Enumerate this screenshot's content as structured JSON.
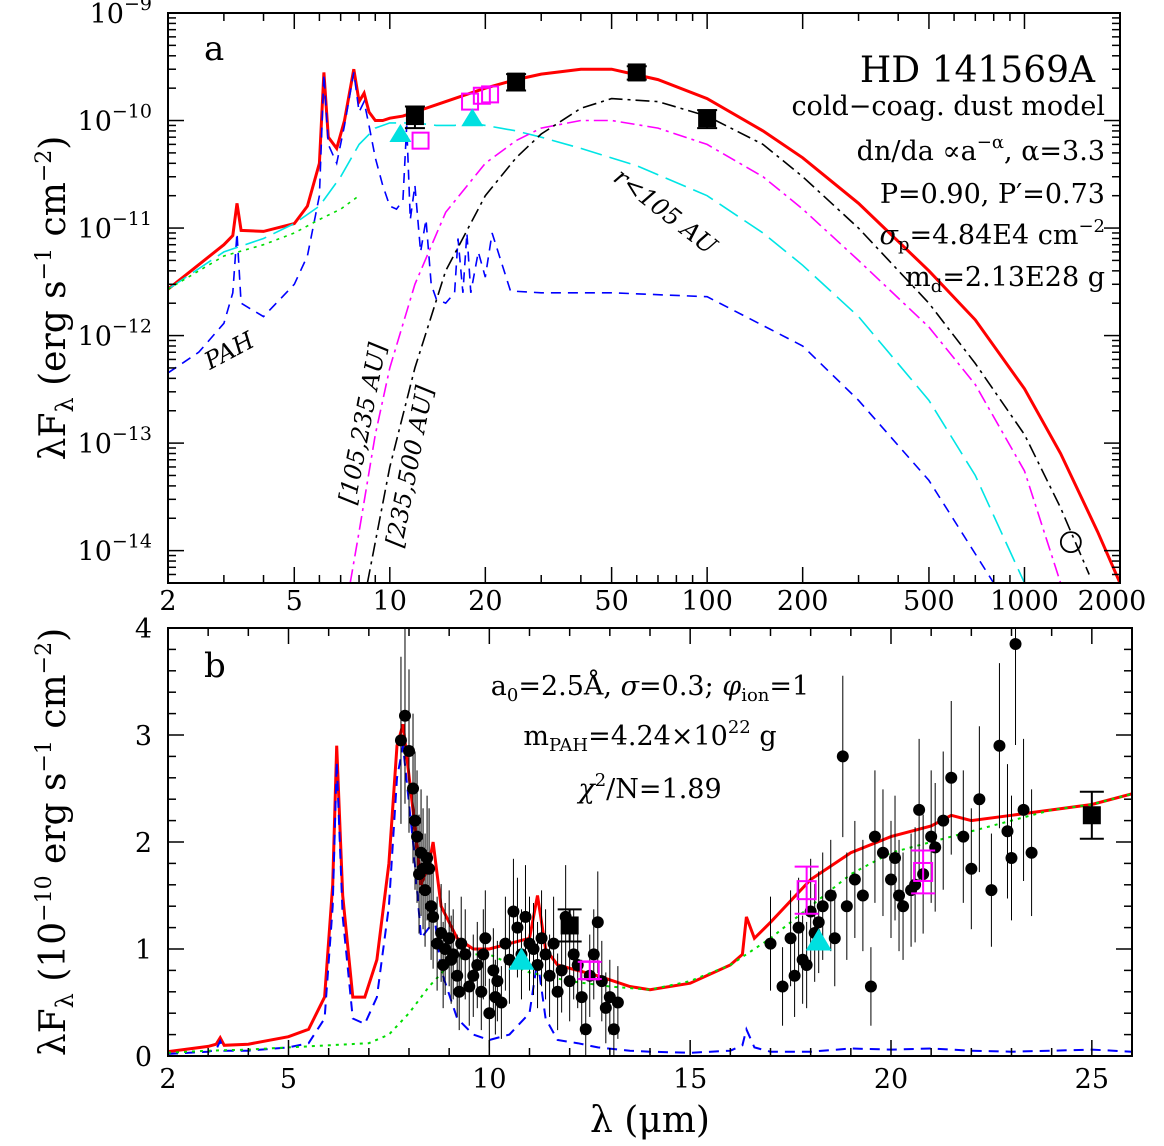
{
  "chart_data": [
    {
      "panel": "a",
      "type": "line",
      "title": "HD 141569A",
      "xlabel": "",
      "ylabel_html": "λF<sub>λ</sub> (erg s<sup>-1</sup> cm<sup>-2</sup>)",
      "ylabel": "λFλ (erg s^-1 cm^-2)",
      "xscale": "log",
      "yscale": "log",
      "xlim": [
        2,
        2000
      ],
      "ylim": [
        5e-15,
        1e-09
      ],
      "x_ticks": [
        {
          "v": 2,
          "t": "2"
        },
        {
          "v": 5,
          "t": "5"
        },
        {
          "v": 10,
          "t": "10"
        },
        {
          "v": 20,
          "t": "20"
        },
        {
          "v": 50,
          "t": "50"
        },
        {
          "v": 100,
          "t": "100"
        },
        {
          "v": 200,
          "t": "200"
        },
        {
          "v": 500,
          "t": "500"
        },
        {
          "v": 1000,
          "t": "1000"
        },
        {
          "v": 2000,
          "t": "2000"
        }
      ],
      "y_ticks": [
        {
          "v": 1e-09,
          "b": "10",
          "e": "−9"
        },
        {
          "v": 1e-10,
          "b": "10",
          "e": "−10"
        },
        {
          "v": 1e-11,
          "b": "10",
          "e": "−11"
        },
        {
          "v": 1e-12,
          "b": "10",
          "e": "−12"
        },
        {
          "v": 1e-13,
          "b": "10",
          "e": "−13"
        },
        {
          "v": 1e-14,
          "b": "10",
          "e": "−14"
        }
      ],
      "annotations": [
        "cold−coag. dust model",
        "dn/da ∝a^−α, α=3.3",
        "P=0.90, P′=0.73",
        "σp=4.84E4 cm^−2",
        "md=2.13E28 g"
      ],
      "region_labels": [
        "PAH",
        "r<105 AU",
        "[105,235 AU]",
        "[235,500 AU]"
      ],
      "series": [
        {
          "role": "total model",
          "color": "#ff0000",
          "style": "solid",
          "x": [
            2,
            3,
            3.2,
            3.3,
            3.4,
            4,
            5,
            5.5,
            6,
            6.2,
            6.4,
            6.8,
            7.2,
            7.7,
            8.0,
            8.3,
            8.6,
            9.0,
            9.5,
            10,
            11,
            12,
            14,
            17,
            20,
            25,
            30,
            40,
            50,
            70,
            100,
            150,
            200,
            300,
            500,
            700,
            1000,
            1300,
            1700,
            2000
          ],
          "y": [
            2.7e-12,
            7e-12,
            8.5e-12,
            1.7e-11,
            9.5e-12,
            9.3e-12,
            1.1e-11,
            1.6e-11,
            4e-11,
            2.8e-10,
            7e-11,
            5.5e-11,
            1e-10,
            3e-10,
            1.5e-10,
            1.8e-10,
            1.2e-10,
            1e-10,
            1e-10,
            1.05e-10,
            1.1e-10,
            1.2e-10,
            1.4e-10,
            1.7e-10,
            2e-10,
            2.4e-10,
            2.7e-10,
            3e-10,
            3e-10,
            2.4e-10,
            1.6e-10,
            8e-11,
            4.5e-11,
            1.7e-11,
            4e-12,
            1.4e-12,
            3.2e-13,
            8e-14,
            1.5e-14,
            5e-15
          ]
        },
        {
          "role": "PAH",
          "color": "#0000ff",
          "style": "dashed",
          "x": [
            2,
            2.5,
            3,
            3.2,
            3.3,
            3.4,
            4,
            5,
            5.5,
            6,
            6.2,
            6.4,
            6.8,
            7.2,
            7.7,
            8.0,
            8.3,
            8.6,
            9.0,
            9.5,
            10,
            10.5,
            11,
            11.3,
            11.6,
            12,
            12.5,
            13,
            13.5,
            14,
            15,
            16,
            16.4,
            17,
            17.5,
            18,
            19,
            20,
            21,
            24,
            30,
            50,
            100,
            200,
            300,
            500,
            800
          ],
          "y": [
            4.5e-13,
            7e-13,
            1.3e-12,
            2.5e-12,
            9e-12,
            2e-12,
            1.5e-12,
            3e-12,
            5.5e-12,
            2e-11,
            2.7e-10,
            6e-11,
            4e-11,
            9e-11,
            2.8e-10,
            1.2e-10,
            1.5e-10,
            9e-11,
            4.5e-11,
            2.5e-11,
            1.6e-11,
            1.5e-11,
            1.8e-11,
            9e-11,
            1.2e-11,
            2.5e-11,
            6e-12,
            1.2e-11,
            3e-12,
            2.2e-12,
            2e-12,
            2.5e-12,
            8e-12,
            2.5e-12,
            9e-12,
            2.5e-12,
            6e-12,
            3.5e-12,
            9e-12,
            2.6e-12,
            2.5e-12,
            2.5e-12,
            2.3e-12,
            8e-13,
            2.5e-13,
            4.5e-14,
            5e-15
          ]
        },
        {
          "role": "r<105 AU",
          "color": "#00e5e5",
          "style": "longdash",
          "x": [
            2,
            3,
            4,
            5,
            6,
            7,
            8,
            9,
            10,
            11,
            12,
            14,
            16,
            18,
            20,
            25,
            30,
            40,
            60,
            100,
            150,
            200,
            300,
            500,
            700,
            1000
          ],
          "y": [
            2.7e-12,
            6e-12,
            8e-12,
            1.1e-11,
            1.6e-11,
            3e-11,
            6e-11,
            8.5e-11,
            9.5e-11,
            9.5e-11,
            9.5e-11,
            9e-11,
            9e-11,
            9.5e-11,
            9e-11,
            8e-11,
            7e-11,
            5.5e-11,
            3.8e-11,
            2e-11,
            9e-12,
            4.5e-12,
            1.5e-12,
            2.5e-13,
            5e-14,
            5e-15
          ]
        },
        {
          "role": "[105,235 AU]",
          "color": "#ff00ff",
          "style": "dashdot",
          "x": [
            7.5,
            8,
            9,
            10,
            12,
            15,
            20,
            25,
            30,
            40,
            50,
            70,
            100,
            150,
            200,
            300,
            500,
            700,
            1000,
            1300
          ],
          "y": [
            5e-15,
            1.5e-14,
            1.2e-13,
            5e-13,
            3e-12,
            1.4e-11,
            4e-11,
            6.5e-11,
            8.5e-11,
            1e-10,
            1e-10,
            8.5e-11,
            6e-11,
            3e-11,
            1.5e-11,
            5e-12,
            1.2e-12,
            3.5e-13,
            5.5e-14,
            5e-15
          ]
        },
        {
          "role": "[235,500 AU]",
          "color": "#000000",
          "style": "dashdot",
          "x": [
            8.5,
            9,
            10,
            12,
            15,
            20,
            25,
            30,
            40,
            50,
            70,
            100,
            150,
            200,
            300,
            500,
            700,
            1000,
            1300,
            1600
          ],
          "y": [
            5e-15,
            1.2e-14,
            6e-14,
            5e-13,
            4e-12,
            2e-11,
            4.5e-11,
            7.5e-11,
            1.3e-10,
            1.6e-10,
            1.5e-10,
            1.1e-10,
            6e-11,
            3e-11,
            1e-11,
            2e-12,
            5.5e-13,
            1.2e-13,
            2.5e-14,
            6e-15
          ]
        },
        {
          "role": "stellar/continuum",
          "color": "#00dd00",
          "style": "dotted",
          "x": [
            2,
            3,
            4,
            5,
            6,
            7,
            8
          ],
          "y": [
            2.7e-12,
            5.5e-12,
            7e-12,
            9e-12,
            1.2e-11,
            1.5e-11,
            2e-11
          ]
        }
      ],
      "points": {
        "black_squares": {
          "x": [
            12,
            25,
            60,
            100
          ],
          "y": [
            1.1e-10,
            2.3e-10,
            2.8e-10,
            1.05e-10
          ],
          "err": [
            2.5e-11,
            4e-11,
            4e-11,
            2e-11
          ]
        },
        "magenta_squares": {
          "x": [
            12.5,
            17.9,
            19.5,
            20.7
          ],
          "y": [
            6.5e-11,
            1.5e-10,
            1.7e-10,
            1.75e-10
          ]
        },
        "cyan_triangles": {
          "x": [
            10.8,
            18.2
          ],
          "y": [
            7.5e-11,
            1.05e-10
          ]
        },
        "open_circle": {
          "x": [
            1400
          ],
          "y": [
            1.2e-14
          ]
        }
      }
    },
    {
      "panel": "b",
      "type": "line",
      "xlabel": "λ (μm)",
      "ylabel_html": "λF<sub>λ</sub> (10<sup>−10</sup> erg s<sup>−1</sup> cm<sup>−2</sup>)",
      "ylabel": "λFλ (10^−10 erg s^−1 cm^−2)",
      "xscale": "linear",
      "yscale": "linear",
      "xlim": [
        2,
        26
      ],
      "ylim": [
        0,
        4
      ],
      "x_ticks": [
        {
          "v": 2,
          "t": "2"
        },
        {
          "v": 5,
          "t": "5"
        },
        {
          "v": 10,
          "t": "10"
        },
        {
          "v": 15,
          "t": "15"
        },
        {
          "v": 20,
          "t": "20"
        },
        {
          "v": 25,
          "t": "25"
        }
      ],
      "y_ticks": [
        {
          "v": 0,
          "t": "0"
        },
        {
          "v": 1,
          "t": "1"
        },
        {
          "v": 2,
          "t": "2"
        },
        {
          "v": 3,
          "t": "3"
        },
        {
          "v": 4,
          "t": "4"
        }
      ],
      "annotations": [
        "a0=2.5Å, σ=0.3; φion=1",
        "mPAH=4.24×10^22 g",
        "χ²/N=1.89"
      ],
      "series": [
        {
          "role": "total model",
          "color": "#ff0000",
          "style": "solid",
          "x": [
            2,
            3,
            3.2,
            3.3,
            3.4,
            4,
            5,
            5.5,
            5.9,
            6.1,
            6.2,
            6.35,
            6.6,
            6.9,
            7.2,
            7.5,
            7.7,
            7.85,
            8.1,
            8.3,
            8.5,
            8.6,
            8.8,
            9.2,
            9.6,
            10,
            10.5,
            11.0,
            11.2,
            11.4,
            11.7,
            12.2,
            12.7,
            13.5,
            14,
            15,
            16,
            16.3,
            16.4,
            16.6,
            17,
            18,
            19,
            20,
            21,
            21.5,
            22,
            23,
            24,
            25,
            26
          ],
          "y": [
            0.04,
            0.09,
            0.11,
            0.17,
            0.1,
            0.11,
            0.18,
            0.25,
            0.55,
            1.6,
            2.9,
            1.5,
            0.55,
            0.55,
            0.9,
            1.8,
            2.9,
            3.1,
            2.3,
            1.6,
            1.8,
            2.0,
            1.4,
            1.1,
            1.0,
            1.0,
            1.05,
            1.1,
            1.5,
            1.0,
            0.85,
            0.8,
            0.75,
            0.65,
            0.62,
            0.68,
            0.85,
            0.95,
            1.3,
            1.1,
            1.25,
            1.65,
            1.9,
            2.05,
            2.15,
            2.25,
            2.2,
            2.25,
            2.3,
            2.35,
            2.45
          ]
        },
        {
          "role": "PAH",
          "color": "#0000ff",
          "style": "dashed",
          "x": [
            2,
            3,
            3.2,
            3.3,
            3.4,
            4,
            5,
            5.5,
            5.9,
            6.1,
            6.2,
            6.35,
            6.6,
            6.9,
            7.2,
            7.5,
            7.7,
            7.85,
            8.1,
            8.3,
            8.5,
            8.6,
            8.8,
            9.2,
            9.6,
            10,
            10.5,
            11.0,
            11.2,
            11.4,
            11.7,
            12.2,
            12.7,
            13.5,
            14,
            15,
            16,
            16.3,
            16.4,
            16.6,
            17,
            18,
            19,
            20,
            21,
            22,
            23,
            24,
            25,
            26
          ],
          "y": [
            0.02,
            0.04,
            0.06,
            0.14,
            0.05,
            0.05,
            0.08,
            0.12,
            0.35,
            1.4,
            2.75,
            1.3,
            0.35,
            0.3,
            0.55,
            1.4,
            2.6,
            2.9,
            2.0,
            1.1,
            1.2,
            1.4,
            0.8,
            0.35,
            0.2,
            0.15,
            0.2,
            0.4,
            0.9,
            0.35,
            0.15,
            0.12,
            0.08,
            0.05,
            0.04,
            0.03,
            0.05,
            0.1,
            0.25,
            0.08,
            0.04,
            0.04,
            0.07,
            0.06,
            0.07,
            0.05,
            0.04,
            0.05,
            0.06,
            0.04
          ]
        },
        {
          "role": "continuum",
          "color": "#00dd00",
          "style": "dotted",
          "x": [
            2,
            3,
            4,
            5,
            6,
            7,
            7.5,
            8,
            8.5,
            9,
            9.5,
            10,
            11,
            12,
            13,
            14,
            15,
            16,
            17,
            18,
            19,
            20,
            21,
            22,
            23,
            24,
            25,
            26
          ],
          "y": [
            0.03,
            0.05,
            0.06,
            0.08,
            0.1,
            0.12,
            0.2,
            0.4,
            0.65,
            0.85,
            0.95,
            0.95,
            0.78,
            0.7,
            0.65,
            0.62,
            0.7,
            0.85,
            1.1,
            1.4,
            1.7,
            1.9,
            2.0,
            2.1,
            2.2,
            2.3,
            2.35,
            2.45
          ]
        }
      ],
      "points": {
        "black_circles_x": [
          7.8,
          7.9,
          8.0,
          8.1,
          8.15,
          8.2,
          8.25,
          8.3,
          8.35,
          8.4,
          8.45,
          8.5,
          8.55,
          8.6,
          8.7,
          8.8,
          8.85,
          8.9,
          9.0,
          9.05,
          9.1,
          9.2,
          9.25,
          9.3,
          9.4,
          9.5,
          9.6,
          9.7,
          9.8,
          9.85,
          9.9,
          10.0,
          10.1,
          10.15,
          10.2,
          10.3,
          10.4,
          10.5,
          10.6,
          10.7,
          10.8,
          10.9,
          11.0,
          11.1,
          11.2,
          11.3,
          11.4,
          11.5,
          11.6,
          11.7,
          11.8,
          11.9,
          12.0,
          12.1,
          12.2,
          12.3,
          12.4,
          12.5,
          12.6,
          12.7,
          12.8,
          12.9,
          13.0,
          13.1,
          13.2,
          17.0,
          17.3,
          17.5,
          17.6,
          17.7,
          17.8,
          17.9,
          18.0,
          18.1,
          18.2,
          18.3,
          18.5,
          18.6,
          18.8,
          18.9,
          19.1,
          19.3,
          19.5,
          19.6,
          19.8,
          20.0,
          20.1,
          20.2,
          20.3,
          20.5,
          20.6,
          20.7,
          20.8,
          21.0,
          21.1,
          21.3,
          21.5,
          21.8,
          22.0,
          22.2,
          22.5,
          22.7,
          22.9,
          23.0,
          23.1,
          23.3,
          23.5
        ],
        "black_circles_y": [
          2.95,
          3.18,
          2.85,
          2.5,
          2.2,
          2.05,
          1.7,
          1.9,
          1.75,
          1.55,
          1.85,
          1.75,
          1.4,
          1.3,
          1.05,
          1.15,
          0.85,
          1.0,
          1.1,
          0.9,
          0.95,
          0.75,
          0.6,
          1.05,
          0.95,
          0.65,
          0.75,
          0.85,
          0.6,
          0.95,
          1.1,
          0.4,
          0.8,
          0.55,
          0.7,
          0.5,
          1.05,
          0.9,
          1.35,
          1.2,
          0.95,
          1.3,
          1.05,
          1.0,
          0.85,
          1.1,
          0.95,
          0.75,
          1.05,
          0.6,
          0.8,
          1.3,
          0.7,
          0.95,
          0.85,
          0.55,
          0.25,
          0.75,
          0.95,
          1.25,
          0.7,
          0.45,
          0.55,
          0.25,
          0.5,
          1.05,
          0.65,
          1.1,
          0.75,
          1.2,
          0.9,
          0.85,
          1.35,
          1.15,
          1.25,
          1.4,
          1.5,
          1.1,
          2.8,
          1.4,
          1.65,
          1.5,
          0.65,
          2.05,
          1.9,
          1.65,
          1.85,
          1.5,
          1.4,
          1.55,
          1.6,
          2.3,
          1.7,
          2.05,
          1.95,
          2.2,
          2.6,
          2.05,
          1.75,
          2.4,
          1.55,
          2.9,
          2.1,
          1.85,
          3.85,
          2.3,
          1.9
        ],
        "black_squares": {
          "x": [
            12.0,
            25.0
          ],
          "y": [
            1.22,
            2.25
          ],
          "err": [
            0.15,
            0.22
          ]
        },
        "magenta_squares": {
          "x": [
            12.5,
            17.9,
            20.8
          ],
          "y": [
            0.8,
            1.55,
            1.72
          ],
          "err": [
            0.08,
            0.22,
            0.2
          ]
        },
        "cyan_triangles": {
          "x": [
            10.8,
            18.2
          ],
          "y": [
            0.9,
            1.08
          ]
        }
      }
    }
  ]
}
